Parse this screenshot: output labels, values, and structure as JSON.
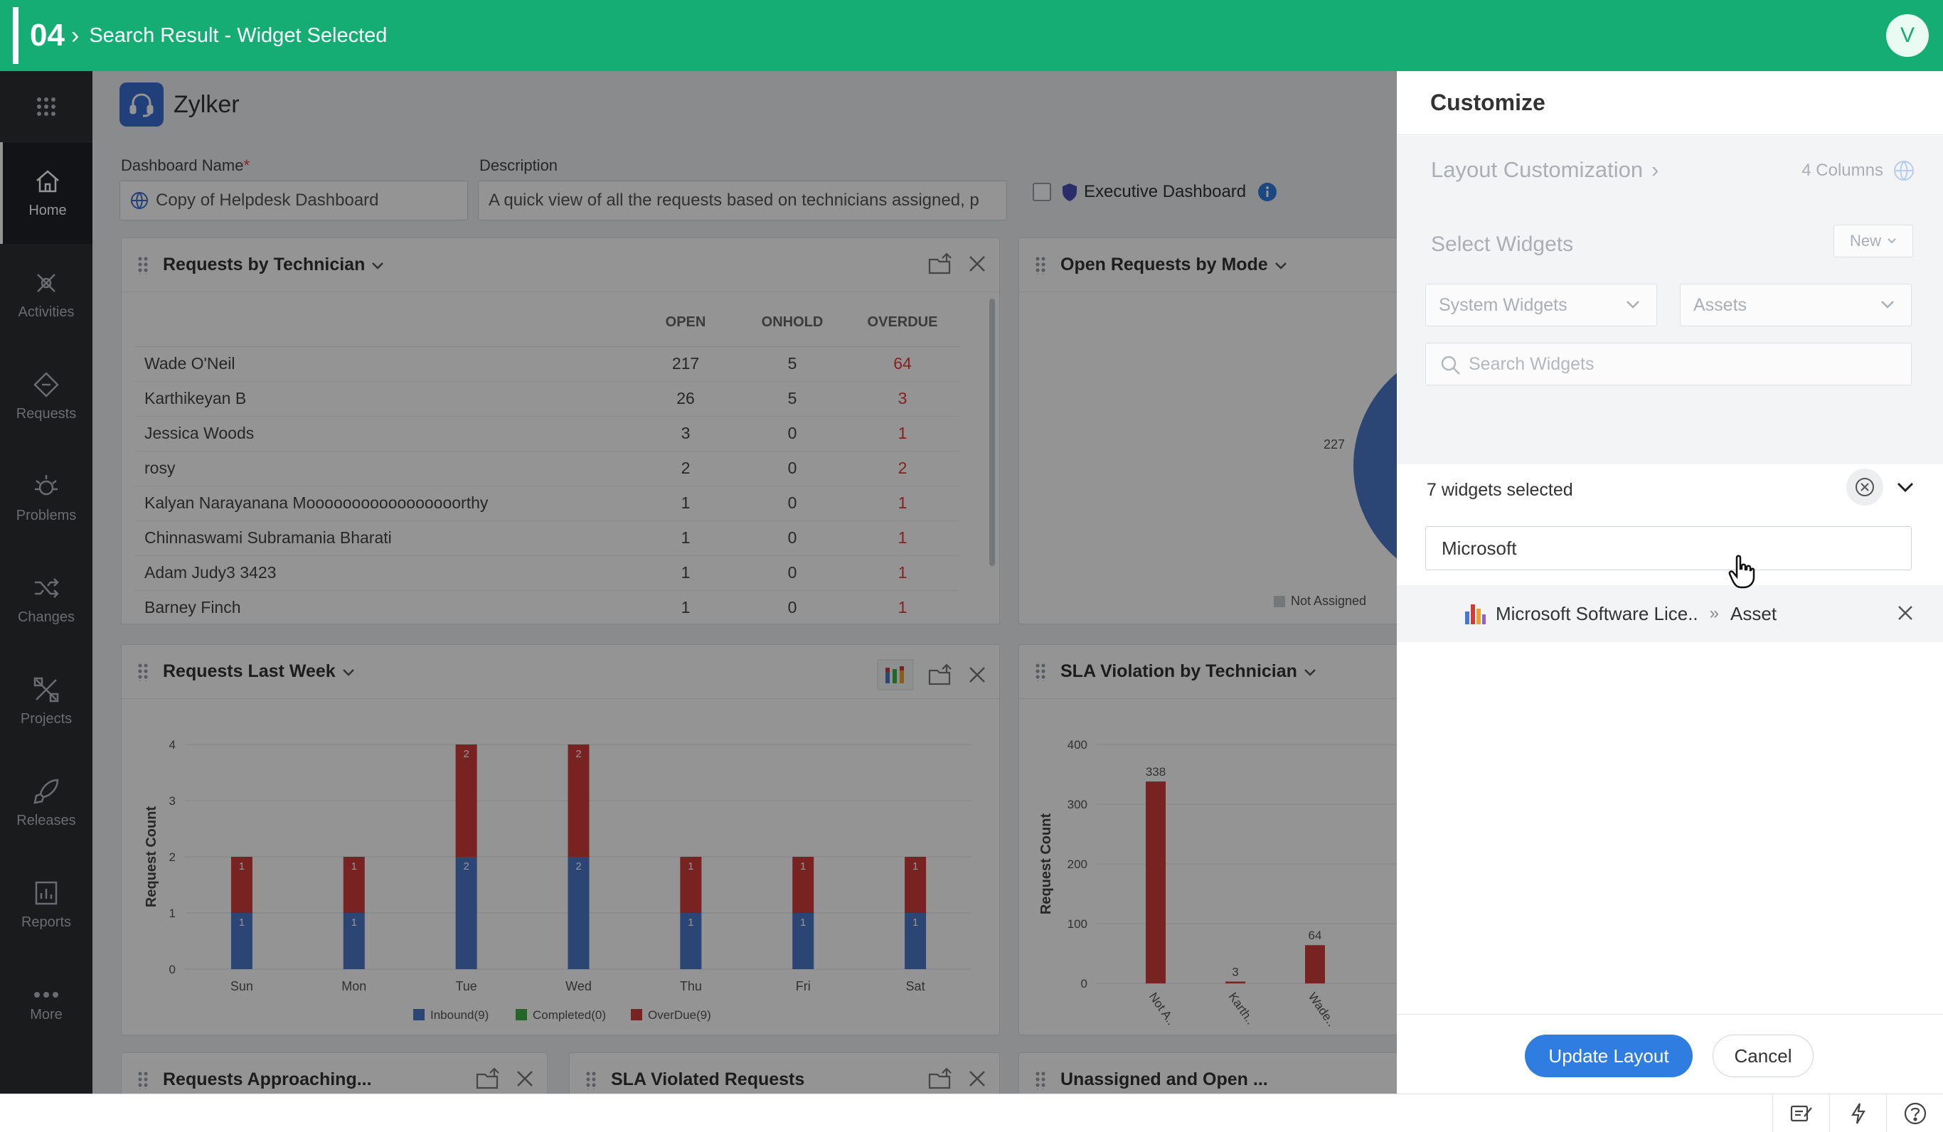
{
  "topbar": {
    "step": "04",
    "separator": "›",
    "title": "Search Result - Widget Selected",
    "avatar": "V"
  },
  "sidebar": {
    "grid_icon": "app-grid-icon",
    "items": [
      {
        "label": "Home",
        "icon": "home-icon",
        "active": true
      },
      {
        "label": "Activities",
        "icon": "activities-icon"
      },
      {
        "label": "Requests",
        "icon": "requests-icon"
      },
      {
        "label": "Problems",
        "icon": "problems-icon"
      },
      {
        "label": "Changes",
        "icon": "changes-icon"
      },
      {
        "label": "Projects",
        "icon": "projects-icon"
      },
      {
        "label": "Releases",
        "icon": "releases-icon"
      },
      {
        "label": "Reports",
        "icon": "reports-icon"
      },
      {
        "label": "More",
        "icon": "more-icon"
      }
    ]
  },
  "main": {
    "brand": "Zylker",
    "dashboard_name_label": "Dashboard Name",
    "required_mark": "*",
    "dashboard_name_value": "Copy of Helpdesk Dashboard",
    "description_label": "Description",
    "description_value": "A quick view of all the requests based on technicians assigned, p",
    "executive_label": "Executive Dashboard"
  },
  "widgets": {
    "requests_by_technician": {
      "title": "Requests by Technician",
      "columns": [
        "OPEN",
        "ONHOLD",
        "OVERDUE"
      ],
      "rows": [
        {
          "name": "Wade O'Neil",
          "open": "217",
          "onhold": "5",
          "overdue": "64"
        },
        {
          "name": "Karthikeyan B",
          "open": "26",
          "onhold": "5",
          "overdue": "3"
        },
        {
          "name": "Jessica Woods",
          "open": "3",
          "onhold": "0",
          "overdue": "1"
        },
        {
          "name": "rosy",
          "open": "2",
          "onhold": "0",
          "overdue": "2"
        },
        {
          "name": "Kalyan Narayanana Mooooooooooooooooorthy",
          "open": "1",
          "onhold": "0",
          "overdue": "1"
        },
        {
          "name": "Chinnaswami Subramania Bharati",
          "open": "1",
          "onhold": "0",
          "overdue": "1"
        },
        {
          "name": "Adam Judy3 3423",
          "open": "1",
          "onhold": "0",
          "overdue": "1"
        },
        {
          "name": "Barney Finch",
          "open": "1",
          "onhold": "0",
          "overdue": "1"
        }
      ]
    },
    "open_requests_by_mode": {
      "title": "Open Requests by Mode",
      "pie_label": "227",
      "legend": "Not Assigned"
    },
    "requests_last_week": {
      "title": "Requests Last Week"
    },
    "sla_violation": {
      "title": "SLA Violation by Technician"
    },
    "bottom_titles": [
      "Requests Approaching...",
      "SLA Violated Requests",
      "Unassigned and Open ..."
    ]
  },
  "chart_data": [
    {
      "type": "bar",
      "stacked": true,
      "categories": [
        "Sun",
        "Mon",
        "Tue",
        "Wed",
        "Thu",
        "Fri",
        "Sat"
      ],
      "series": [
        {
          "name": "Inbound(9)",
          "values": [
            1,
            1,
            2,
            2,
            1,
            1,
            1
          ],
          "color": "#4a78c9"
        },
        {
          "name": "Completed(0)",
          "values": [
            0,
            0,
            0,
            0,
            0,
            0,
            0
          ],
          "color": "#3fae49"
        },
        {
          "name": "OverDue(9)",
          "values": [
            1,
            1,
            2,
            2,
            1,
            1,
            1
          ],
          "color": "#d13b3b"
        }
      ],
      "ylabel": "Request Count",
      "ylim": [
        0,
        4
      ],
      "yticks": [
        0,
        1,
        2,
        3,
        4
      ],
      "legend_position": "bottom",
      "grid": true
    },
    {
      "type": "bar",
      "categories": [
        "Not A..",
        "Karth..",
        "Wade.."
      ],
      "values": [
        338,
        3,
        64
      ],
      "color": "#d13b3b",
      "ylabel": "Request Count",
      "ylim": [
        0,
        400
      ],
      "yticks": [
        0,
        100,
        200,
        300,
        400
      ],
      "grid": true
    }
  ],
  "customize": {
    "title": "Customize",
    "layout_label": "Layout Customization",
    "chevron": "›",
    "columns": "4 Columns",
    "select_widgets": "Select Widgets",
    "new_label": "New",
    "system_widgets": "System Widgets",
    "module": "Assets",
    "search_placeholder": "Search Widgets",
    "selected_count": "7 widgets selected",
    "filter_value": "Microsoft",
    "result_name": "Microsoft Software Lice..",
    "result_separator": "»",
    "result_module": "Asset",
    "update_label": "Update Layout",
    "cancel_label": "Cancel"
  }
}
